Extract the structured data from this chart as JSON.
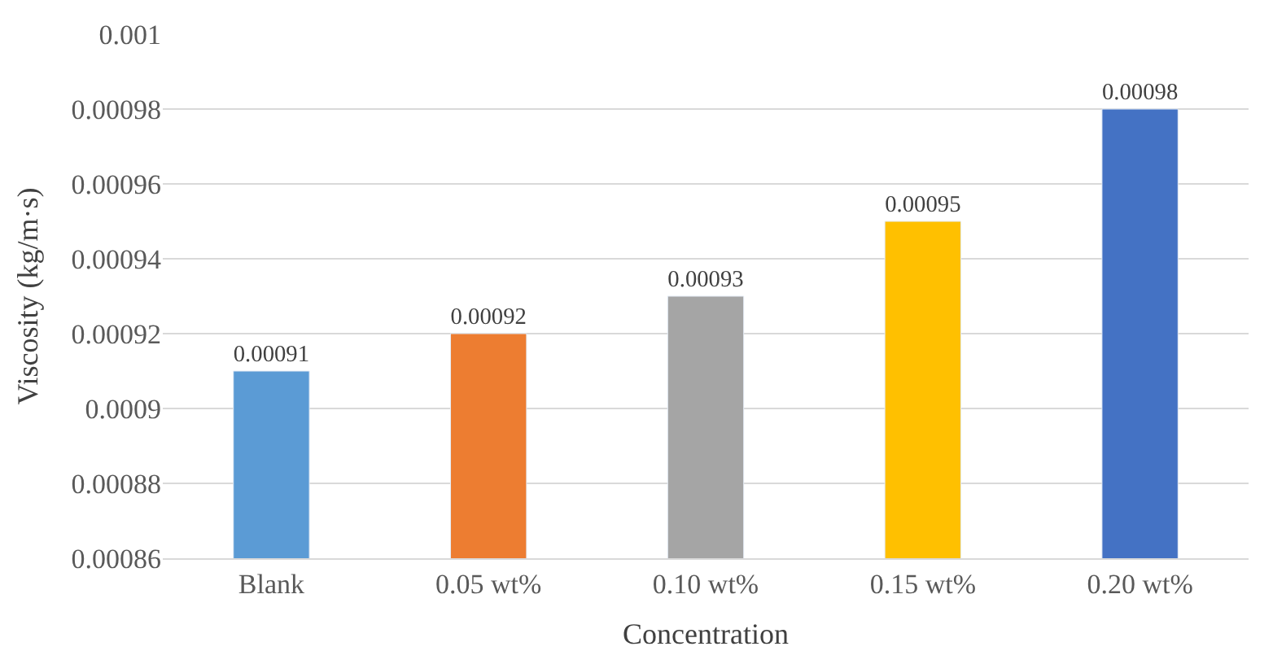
{
  "chart_data": {
    "type": "bar",
    "xlabel": "Concentration",
    "ylabel": "Viscosity (kg/m·s)",
    "categories": [
      "Blank",
      "0.05 wt%",
      "0.10 wt%",
      "0.15 wt%",
      "0.20 wt%"
    ],
    "values": [
      0.00091,
      0.00092,
      0.00093,
      0.00095,
      0.00098
    ],
    "colors": [
      "#5b9bd5",
      "#ed7d31",
      "#a5a5a5",
      "#ffc000",
      "#4472c4"
    ],
    "ylim": [
      0.00086,
      0.001
    ],
    "yticks": [
      0.00086,
      0.00088,
      0.0009,
      0.00092,
      0.00094,
      0.00096,
      0.00098,
      0.001
    ],
    "grid": "y",
    "data_labels": true
  }
}
